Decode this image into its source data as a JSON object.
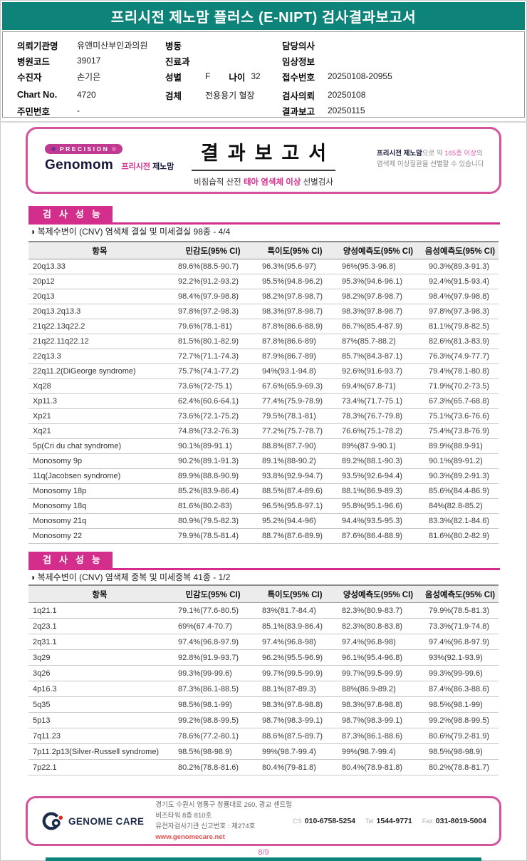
{
  "colors": {
    "teal": "#0E8379",
    "magenta": "#D42E8C",
    "border_pink": "#D4549C",
    "link_red": "#E8504F"
  },
  "header": {
    "title": "프리시전 제노맘 플러스 (E-NIPT) 검사결과보고서"
  },
  "patient": {
    "left": [
      {
        "label": "의뢰기관명",
        "value": "유앤미산부인과의원"
      },
      {
        "label": "병원코드",
        "value": "39017"
      },
      {
        "label": "수진자",
        "value": "손기은"
      },
      {
        "label": "Chart No.",
        "value": "4720"
      },
      {
        "label": "주민번호",
        "value": "-"
      }
    ],
    "middle": [
      {
        "label": "병동",
        "value": ""
      },
      {
        "label": "진료과",
        "value": ""
      },
      {
        "label": "성별",
        "value": "F",
        "label2": "나이",
        "value2": "32"
      },
      {
        "label": "검체",
        "value": "전용용기 혈장"
      }
    ],
    "right": [
      {
        "label": "담당의사",
        "value": ""
      },
      {
        "label": "임상정보",
        "value": ""
      },
      {
        "label": "접수번호",
        "value": "20250108-20955"
      },
      {
        "label": "검사의뢰",
        "value": "20250108"
      },
      {
        "label": "결과보고",
        "value": "20250115"
      }
    ]
  },
  "banner": {
    "badge": "PRECISION",
    "brand": "Genomom",
    "brand_kr_accent": "프리시전",
    "brand_kr": "제노맘",
    "title": "결과보고서",
    "subtitle_pre": "비침습적 산전 ",
    "subtitle_accent": "태아 염색체 이상",
    "subtitle_post": " 선별검사",
    "note1_bold": "프리시전 제노맘",
    "note1_mid": "으로 약 ",
    "note1_accent": "165종 이상",
    "note1_post": "의",
    "note2": "염색체 이상질환을 선별할 수 있습니다"
  },
  "sections": [
    {
      "heading": "검사성능",
      "subtitle": "◑ 복제수변이 (CNV) 염색체 결실 및 미세결실 98종 - 4/4",
      "table": {
        "headers": [
          "항목",
          "민감도(95% CI)",
          "특이도(95% CI)",
          "양성예측도(95% CI)",
          "음성예측도(95% CI)"
        ],
        "rows": [
          [
            "20q13.33",
            "89.6%(88.5-90.7)",
            "96.3%(95.6-97)",
            "96%(95.3-96.8)",
            "90.3%(89.3-91.3)"
          ],
          [
            "20p12",
            "92.2%(91.2-93.2)",
            "95.5%(94.8-96.2)",
            "95.3%(94.6-96.1)",
            "92.4%(91.5-93.4)"
          ],
          [
            "20q13",
            "98.4%(97.9-98.8)",
            "98.2%(97.8-98.7)",
            "98.2%(97.8-98.7)",
            "98.4%(97.9-98.8)"
          ],
          [
            "20q13.2q13.3",
            "97.8%(97.2-98.3)",
            "98.3%(97.8-98.7)",
            "98.3%(97.8-98.7)",
            "97.8%(97.3-98.3)"
          ],
          [
            "21q22.13q22.2",
            "79.6%(78.1-81)",
            "87.8%(86.6-88.9)",
            "86.7%(85.4-87.9)",
            "81.1%(79.8-82.5)"
          ],
          [
            "21q22.11q22.12",
            "81.5%(80.1-82.9)",
            "87.8%(86.6-89)",
            "87%(85.7-88.2)",
            "82.6%(81.3-83.9)"
          ],
          [
            "22q13.3",
            "72.7%(71.1-74.3)",
            "87.9%(86.7-89)",
            "85.7%(84.3-87.1)",
            "76.3%(74.9-77.7)"
          ],
          [
            "22q11.2(DiGeorge syndrome)",
            "75.7%(74.1-77.2)",
            "94%(93.1-94.8)",
            "92.6%(91.6-93.7)",
            "79.4%(78.1-80.8)"
          ],
          [
            "Xq28",
            "73.6%(72-75.1)",
            "67.6%(65.9-69.3)",
            "69.4%(67.8-71)",
            "71.9%(70.2-73.5)"
          ],
          [
            "Xp11.3",
            "62.4%(60.6-64.1)",
            "77.4%(75.9-78.9)",
            "73.4%(71.7-75.1)",
            "67.3%(65.7-68.8)"
          ],
          [
            "Xp21",
            "73.6%(72.1-75.2)",
            "79.5%(78.1-81)",
            "78.3%(76.7-79.8)",
            "75.1%(73.6-76.6)"
          ],
          [
            "Xq21",
            "74.8%(73.2-76.3)",
            "77.2%(75.7-78.7)",
            "76.6%(75.1-78.2)",
            "75.4%(73.8-76.9)"
          ],
          [
            "5p(Cri du chat syndrome)",
            "90.1%(89-91.1)",
            "88.8%(87.7-90)",
            "89%(87.9-90.1)",
            "89.9%(88.9-91)"
          ],
          [
            "Monosomy 9p",
            "90.2%(89.1-91.3)",
            "89.1%(88-90.2)",
            "89.2%(88.1-90.3)",
            "90.1%(89-91.2)"
          ],
          [
            "11q(Jacobsen syndrome)",
            "89.9%(88.8-90.9)",
            "93.8%(92.9-94.7)",
            "93.5%(92.6-94.4)",
            "90.3%(89.2-91.3)"
          ],
          [
            "Monosomy 18p",
            "85.2%(83.9-86.4)",
            "88.5%(87.4-89.6)",
            "88.1%(86.9-89.3)",
            "85.6%(84.4-86.9)"
          ],
          [
            "Monosomy 18q",
            "81.6%(80.2-83)",
            "96.5%(95.8-97.1)",
            "95.8%(95.1-96.6)",
            "84%(82.8-85.2)"
          ],
          [
            "Monosomy 21q",
            "80.9%(79.5-82.3)",
            "95.2%(94.4-96)",
            "94.4%(93.5-95.3)",
            "83.3%(82.1-84.6)"
          ],
          [
            "Monosomy 22",
            "79.9%(78.5-81.4)",
            "88.7%(87.6-89.9)",
            "87.6%(86.4-88.9)",
            "81.6%(80.2-82.9)"
          ]
        ]
      }
    },
    {
      "heading": "검사성능",
      "subtitle": "◑ 복제수변이 (CNV) 염색체 중복 및 미세중복 41종 - 1/2",
      "table": {
        "headers": [
          "항목",
          "민감도(95% CI)",
          "특이도(95% CI)",
          "양성예측도(95% CI)",
          "음성예측도(95% CI)"
        ],
        "rows": [
          [
            "1q21.1",
            "79.1%(77.6-80.5)",
            "83%(81.7-84.4)",
            "82.3%(80.9-83.7)",
            "79.9%(78.5-81.3)"
          ],
          [
            "2q23.1",
            "69%(67.4-70.7)",
            "85.1%(83.9-86.4)",
            "82.3%(80.8-83.8)",
            "73.3%(71.9-74.8)"
          ],
          [
            "2q31.1",
            "97.4%(96.8-97.9)",
            "97.4%(96.8-98)",
            "97.4%(96.8-98)",
            "97.4%(96.8-97.9)"
          ],
          [
            "3q29",
            "92.8%(91.9-93.7)",
            "96.2%(95.5-96.9)",
            "96.1%(95.4-96.8)",
            "93%(92.1-93.9)"
          ],
          [
            "3q26",
            "99.3%(99-99.6)",
            "99.7%(99.5-99.9)",
            "99.7%(99.5-99.9)",
            "99.3%(99-99.6)"
          ],
          [
            "4p16.3",
            "87.3%(86.1-88.5)",
            "88.1%(87-89.3)",
            "88%(86.9-89.2)",
            "87.4%(86.3-88.6)"
          ],
          [
            "5q35",
            "98.5%(98.1-99)",
            "98.3%(97.8-98.8)",
            "98.3%(97.8-98.8)",
            "98.5%(98.1-99)"
          ],
          [
            "5p13",
            "99.2%(98.8-99.5)",
            "98.7%(98.3-99.1)",
            "98.7%(98.3-99.1)",
            "99.2%(98.8-99.5)"
          ],
          [
            "7q11.23",
            "78.6%(77.2-80.1)",
            "88.6%(87.5-89.7)",
            "87.3%(86.1-88.6)",
            "80.6%(79.2-81.9)"
          ],
          [
            "7p11.2p13(Silver-Russell syndrome)",
            "98.5%(98-98.9)",
            "99%(98.7-99.4)",
            "99%(98.7-99.4)",
            "98.5%(98-98.9)"
          ],
          [
            "7p22.1",
            "80.2%(78.8-81.6)",
            "80.4%(79-81.8)",
            "80.4%(78.9-81.8)",
            "80.2%(78.8-81.7)"
          ]
        ]
      }
    }
  ],
  "footer": {
    "logo": "GENOME CARE",
    "address": "경기도 수원시 영통구 창룡대로 260, 광교 센트럴비즈타워 8층 810호",
    "license": "유전자검사기관 신고번호 : 제274호",
    "website": "www.genomecare.net",
    "cs_label": "CS",
    "cs": "010-6758-5254",
    "tel_label": "Tel",
    "tel": "1544-9771",
    "fax_label": "Fax",
    "fax": "031-8019-5004"
  },
  "page_number": "8/9"
}
